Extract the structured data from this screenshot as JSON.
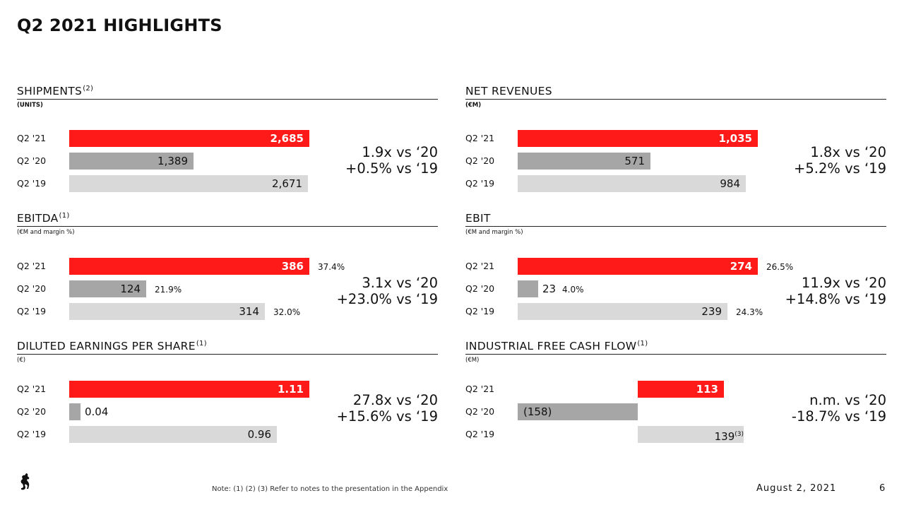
{
  "slide": {
    "title": "Q2 2021 HIGHLIGHTS",
    "footer_note": "Note: (1) (2) (3) Refer to notes to the presentation in the Appendix",
    "date": "August 2, 2021",
    "page_number": "6"
  },
  "colors": {
    "current": "#ff1a1a",
    "prior": "#a6a6a6",
    "two_years_ago": "#d9d9d9"
  },
  "panels": {
    "shipments": {
      "title": "SHIPMENTS",
      "note": "(2)",
      "unit": "(UNITS)",
      "rows": [
        {
          "label": "Q2 '21",
          "value": "2,685"
        },
        {
          "label": "Q2 '20",
          "value": "1,389"
        },
        {
          "label": "Q2 '19",
          "value": "2,671"
        }
      ],
      "comparison": [
        "1.9x vs ‘20",
        "+0.5% vs ‘19"
      ]
    },
    "net_revenues": {
      "title": "NET REVENUES",
      "unit": "(€M)",
      "rows": [
        {
          "label": "Q2 '21",
          "value": "1,035"
        },
        {
          "label": "Q2 '20",
          "value": "571"
        },
        {
          "label": "Q2 '19",
          "value": "984"
        }
      ],
      "comparison": [
        "1.8x vs ‘20",
        "+5.2% vs ‘19"
      ]
    },
    "ebitda": {
      "title": "EBITDA",
      "note": "(1)",
      "unit": "(€M and margin %)",
      "rows": [
        {
          "label": "Q2 '21",
          "value": "386",
          "margin": "37.4%"
        },
        {
          "label": "Q2 '20",
          "value": "124",
          "margin": "21.9%"
        },
        {
          "label": "Q2 '19",
          "value": "314",
          "margin": "32.0%"
        }
      ],
      "comparison": [
        "3.1x vs ‘20",
        "+23.0% vs ‘19"
      ]
    },
    "ebit": {
      "title": "EBIT",
      "unit": "(€M and margin %)",
      "rows": [
        {
          "label": "Q2 '21",
          "value": "274",
          "margin": "26.5%"
        },
        {
          "label": "Q2 '20",
          "value": "23",
          "margin": "4.0%"
        },
        {
          "label": "Q2 '19",
          "value": "239",
          "margin": "24.3%"
        }
      ],
      "comparison": [
        "11.9x vs ‘20",
        "+14.8% vs ‘19"
      ]
    },
    "eps": {
      "title": "DILUTED EARNINGS PER SHARE",
      "note": "(1)",
      "unit": "(€)",
      "rows": [
        {
          "label": "Q2 '21",
          "value": "1.11"
        },
        {
          "label": "Q2 '20",
          "value": "0.04"
        },
        {
          "label": "Q2 '19",
          "value": "0.96"
        }
      ],
      "comparison": [
        "27.8x vs ‘20",
        "+15.6% vs ‘19"
      ]
    },
    "fcf": {
      "title": "INDUSTRIAL FREE CASH FLOW",
      "note": "(1)",
      "unit": "(€M)",
      "rows": [
        {
          "label": "Q2 '21",
          "value": "113"
        },
        {
          "label": "Q2 '20",
          "value": "(158)"
        },
        {
          "label": "Q2 '19",
          "value": "139",
          "note": "(3)"
        }
      ],
      "comparison": [
        "n.m. vs ‘20",
        "-18.7% vs ‘19"
      ]
    }
  },
  "chart_data": [
    {
      "type": "bar",
      "title": "SHIPMENTS",
      "ylabel": "(UNITS)",
      "categories": [
        "Q2 '21",
        "Q2 '20",
        "Q2 '19"
      ],
      "values": [
        2685,
        1389,
        2671
      ]
    },
    {
      "type": "bar",
      "title": "NET REVENUES",
      "ylabel": "(€M)",
      "categories": [
        "Q2 '21",
        "Q2 '20",
        "Q2 '19"
      ],
      "values": [
        1035,
        571,
        984
      ]
    },
    {
      "type": "bar",
      "title": "EBITDA",
      "ylabel": "(€M and margin %)",
      "categories": [
        "Q2 '21",
        "Q2 '20",
        "Q2 '19"
      ],
      "values": [
        386,
        124,
        314
      ],
      "margins_pct": [
        37.4,
        21.9,
        32.0
      ]
    },
    {
      "type": "bar",
      "title": "EBIT",
      "ylabel": "(€M and margin %)",
      "categories": [
        "Q2 '21",
        "Q2 '20",
        "Q2 '19"
      ],
      "values": [
        274,
        23,
        239
      ],
      "margins_pct": [
        26.5,
        4.0,
        24.3
      ]
    },
    {
      "type": "bar",
      "title": "DILUTED EARNINGS PER SHARE",
      "ylabel": "(€)",
      "categories": [
        "Q2 '21",
        "Q2 '20",
        "Q2 '19"
      ],
      "values": [
        1.11,
        0.04,
        0.96
      ]
    },
    {
      "type": "bar",
      "title": "INDUSTRIAL FREE CASH FLOW",
      "ylabel": "(€M)",
      "categories": [
        "Q2 '21",
        "Q2 '20",
        "Q2 '19"
      ],
      "values": [
        113,
        -158,
        139
      ]
    }
  ]
}
